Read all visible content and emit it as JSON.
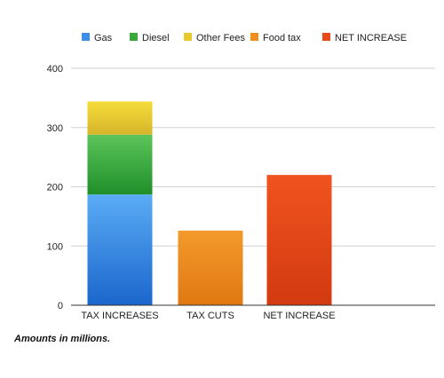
{
  "chart_data": {
    "type": "bar",
    "stacked": true,
    "categories": [
      "TAX INCREASES",
      "TAX CUTS",
      "NET INCREASE"
    ],
    "series": [
      {
        "name": "Gas",
        "values": [
          187,
          0,
          0
        ],
        "color": "#3d8fe6"
      },
      {
        "name": "Diesel",
        "values": [
          101,
          0,
          0
        ],
        "color": "#3aa83a"
      },
      {
        "name": "Other Fees",
        "values": [
          56,
          0,
          0
        ],
        "color": "#e8c92b"
      },
      {
        "name": "Food tax",
        "values": [
          0,
          126,
          0
        ],
        "color": "#ef8e1f"
      },
      {
        "name": "NET INCREASE",
        "values": [
          0,
          0,
          220
        ],
        "color": "#e84a1a"
      }
    ],
    "yticks": [
      "0",
      "100",
      "200",
      "300",
      "400"
    ],
    "ylim": [
      0,
      400
    ],
    "grid": true,
    "legend_position": "top",
    "title": "",
    "xlabel": "",
    "ylabel": ""
  },
  "note": "Amounts in millions."
}
